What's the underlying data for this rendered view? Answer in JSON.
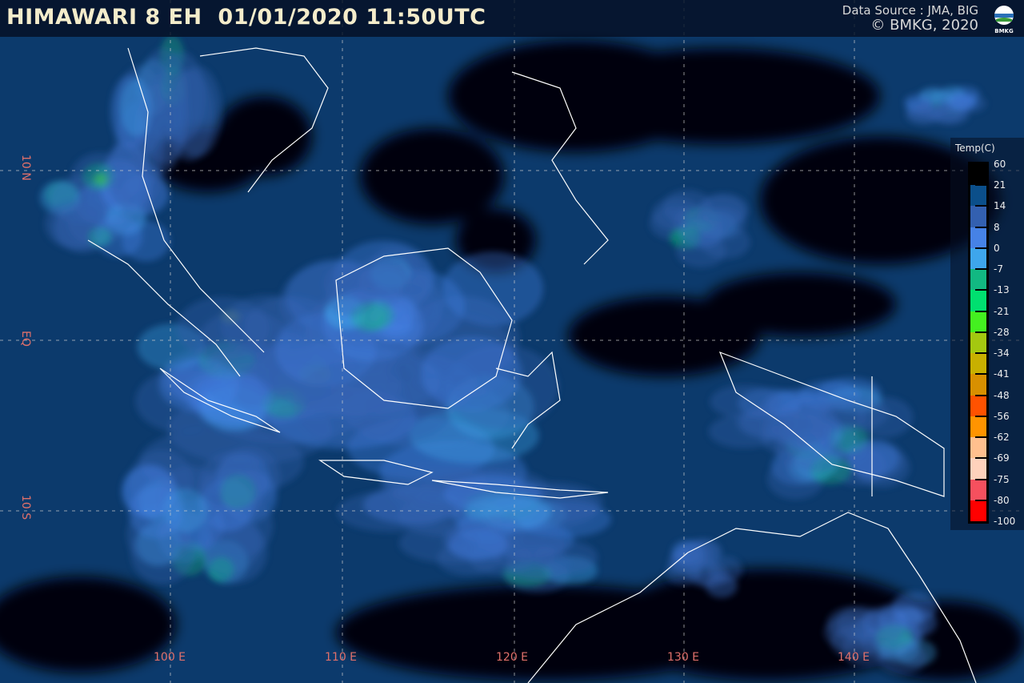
{
  "header": {
    "title": "HIMAWARI 8 EH  01/01/2020 11:50UTC",
    "data_source": "Data Source : JMA, BIG",
    "copyright": "© BMKG, 2020",
    "logo_text": "BMKG"
  },
  "map": {
    "lat_labels": [
      "10 N",
      "EQ",
      "10 S"
    ],
    "lon_labels": [
      "100 E",
      "110 E",
      "120 E",
      "130 E",
      "140 E"
    ],
    "grid_color": "#cccccc",
    "label_color": "#e0706a",
    "ocean_color": "#0c3a6c",
    "coastline_color": "#ffffff"
  },
  "legend": {
    "title": "Temp(C)",
    "labels": [
      "60",
      "21",
      "14",
      "8",
      "0",
      "-7",
      "-13",
      "-21",
      "-28",
      "-34",
      "-41",
      "-48",
      "-56",
      "-62",
      "-69",
      "-75",
      "-80",
      "-100"
    ],
    "colors": [
      "#000000",
      "#0b4f8a",
      "#3360b0",
      "#4682e6",
      "#3ea6ec",
      "#12b882",
      "#00e070",
      "#44f020",
      "#a4c810",
      "#c8b000",
      "#d89000",
      "#ff5200",
      "#ff9400",
      "#ffc08e",
      "#ffd2bc",
      "#f6505e",
      "#ff0000"
    ]
  }
}
